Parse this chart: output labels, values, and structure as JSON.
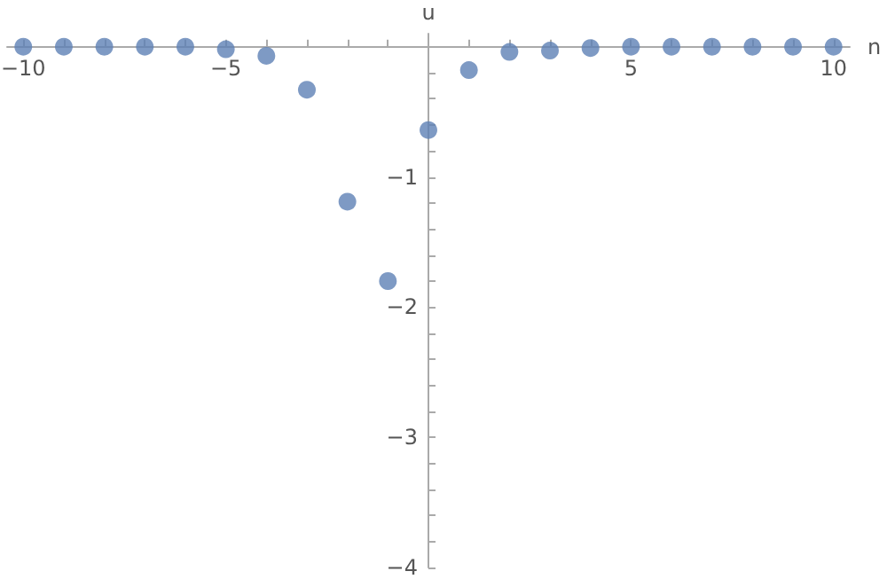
{
  "chart_data": {
    "type": "scatter",
    "xlabel": "n",
    "ylabel": "u",
    "x": [
      -10,
      -9,
      -8,
      -7,
      -6,
      -5,
      -4,
      -3,
      -2,
      -1,
      0,
      1,
      2,
      3,
      4,
      5,
      6,
      7,
      8,
      9,
      10
    ],
    "values": [
      0,
      0,
      0,
      0,
      0,
      -0.02,
      -0.07,
      -0.33,
      -1.19,
      -1.8,
      -0.64,
      -0.18,
      -0.04,
      -0.03,
      -0.01,
      0,
      0,
      0,
      0,
      0,
      0
    ],
    "color": "#5e81b5",
    "marker": "circle",
    "grid": false,
    "xlim": [
      -10.4,
      10.4
    ],
    "ylim": [
      -4,
      0.1
    ],
    "xticks": [
      {
        "value": -10,
        "label": "−10"
      },
      {
        "value": -9,
        "label": null
      },
      {
        "value": -8,
        "label": null
      },
      {
        "value": -7,
        "label": null
      },
      {
        "value": -6,
        "label": null
      },
      {
        "value": -5,
        "label": "−5"
      },
      {
        "value": -4,
        "label": null
      },
      {
        "value": -3,
        "label": null
      },
      {
        "value": -2,
        "label": null
      },
      {
        "value": -1,
        "label": null
      },
      {
        "value": 1,
        "label": null
      },
      {
        "value": 2,
        "label": null
      },
      {
        "value": 3,
        "label": null
      },
      {
        "value": 4,
        "label": null
      },
      5,
      {
        "value": 6,
        "label": null
      },
      {
        "value": 7,
        "label": null
      },
      {
        "value": 8,
        "label": null
      },
      {
        "value": 9,
        "label": null
      },
      10
    ],
    "yticks": [
      {
        "value": -4,
        "label": "−4"
      },
      {
        "value": -3.8,
        "label": null
      },
      {
        "value": -3.6,
        "label": null
      },
      {
        "value": -3.4,
        "label": null
      },
      {
        "value": -3.2,
        "label": null
      },
      {
        "value": -3,
        "label": "−3"
      },
      {
        "value": -2.8,
        "label": null
      },
      {
        "value": -2.6,
        "label": null
      },
      {
        "value": -2.4,
        "label": null
      },
      {
        "value": -2.2,
        "label": null
      },
      {
        "value": -2,
        "label": "−2"
      },
      {
        "value": -1.8,
        "label": null
      },
      {
        "value": -1.6,
        "label": null
      },
      {
        "value": -1.4,
        "label": null
      },
      {
        "value": -1.2,
        "label": null
      },
      {
        "value": -1,
        "label": "−1"
      },
      {
        "value": -0.8,
        "label": null
      },
      {
        "value": -0.6,
        "label": null
      },
      {
        "value": -0.4,
        "label": null
      },
      {
        "value": -0.2,
        "label": null
      }
    ]
  }
}
